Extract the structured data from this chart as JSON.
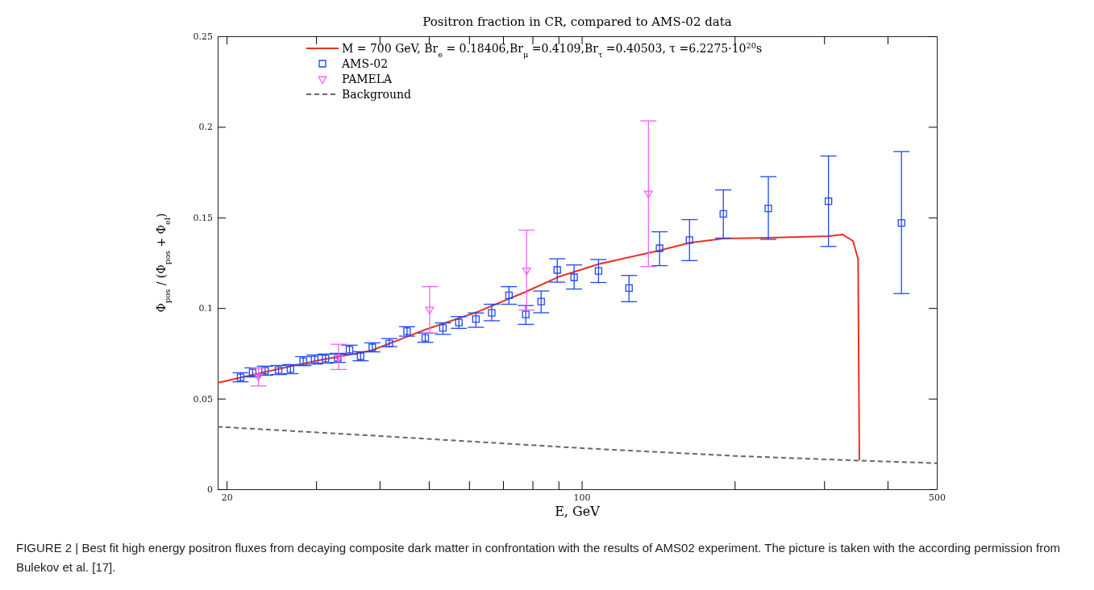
{
  "chart_data": {
    "type": "scatter",
    "title": "Positron fraction in CR, compared to AMS-02 data",
    "xlabel": "E, GeV",
    "ylabel": "Φ$_{pos}$ / (Φ$_{pos}$ + Φ$_{el}$)",
    "log": "x",
    "xlim": [
      19.2,
      500
    ],
    "ylim": [
      0,
      0.25
    ],
    "xticks": [
      20,
      {
        "value": 30,
        "label": null
      },
      {
        "value": 40,
        "label": null
      },
      {
        "value": 50,
        "label": null
      },
      {
        "value": 60,
        "label": null
      },
      {
        "value": 70,
        "label": null
      },
      {
        "value": 80,
        "label": null
      },
      {
        "value": 90,
        "label": null
      },
      100,
      {
        "value": 200,
        "label": null
      },
      {
        "value": 300,
        "label": null
      },
      {
        "value": 400,
        "label": null
      },
      500
    ],
    "yticks": [
      0,
      0.05,
      0.1,
      0.15,
      0.2,
      0.25
    ],
    "grid": false,
    "legend": "top",
    "annotations": [
      "FIGURE 2 | Best fit high energy positron fluxes from decaying composite dark matter in confrontation with the results of AMS02 experiment. The picture is taken with the according permission from Bulekov et al. [17]."
    ],
    "series": [
      {
        "name": "M = 700 GeV, Br$_{e}$ = 0.18406,Br$_{μ}$ =0.4109,Br$_{τ}$ =0.40503, τ =6.2275·10$^{20}$s",
        "type": "line",
        "color": "#e8321e",
        "marker": "none",
        "line_style": "solid",
        "x": [
          19.2,
          23.7,
          30.1,
          38.5,
          49.2,
          62.5,
          77.6,
          90.2,
          108.2,
          142.3,
          163,
          190,
          233,
          306,
          326,
          342,
          350,
          351,
          352
        ],
        "values": [
          0.0587,
          0.0646,
          0.071,
          0.0765,
          0.0881,
          0.098,
          0.109,
          0.1173,
          0.1243,
          0.1318,
          0.136,
          0.1383,
          0.1388,
          0.1397,
          0.1406,
          0.137,
          0.127,
          0.068,
          0.016
        ]
      },
      {
        "name": "AMS-02",
        "color": "#1f48f0",
        "marker": "square",
        "x": [
          21.3,
          22.5,
          23.8,
          25.3,
          26.7,
          28.3,
          29.8,
          31.3,
          33.1,
          34.9,
          36.7,
          38.7,
          41.8,
          45.3,
          49.2,
          53.3,
          57.3,
          61.9,
          66.5,
          71.9,
          77.6,
          83.2,
          89.5,
          96.6,
          107.9,
          123.9,
          142.3,
          163,
          190,
          233,
          306,
          426
        ],
        "values": [
          0.0618,
          0.0645,
          0.0654,
          0.0658,
          0.0663,
          0.0707,
          0.0716,
          0.0721,
          0.0725,
          0.077,
          0.0734,
          0.0783,
          0.0805,
          0.0872,
          0.0836,
          0.089,
          0.092,
          0.0939,
          0.0974,
          0.107,
          0.0965,
          0.1036,
          0.121,
          0.117,
          0.1205,
          0.111,
          0.133,
          0.1375,
          0.152,
          0.155,
          0.159,
          0.147
        ],
        "errors": [
          0.0025,
          0.0025,
          0.0025,
          0.0025,
          0.0025,
          0.0025,
          0.0025,
          0.0025,
          0.0025,
          0.0025,
          0.0025,
          0.0025,
          [
            0.0787,
            0.0832
          ],
          [
            0.0845,
            0.0897
          ],
          [
            0.0811,
            0.0862
          ],
          [
            0.0855,
            0.0918
          ],
          [
            0.0888,
            0.0953
          ],
          [
            0.0894,
            0.0973
          ],
          [
            0.093,
            0.1021
          ],
          [
            0.1021,
            0.1118
          ],
          [
            0.091,
            0.1014
          ],
          [
            0.0974,
            0.1094
          ],
          [
            0.1143,
            0.1272
          ],
          [
            0.1105,
            0.1238
          ],
          [
            0.1141,
            0.1268
          ],
          [
            0.1035,
            0.118
          ],
          [
            0.1234,
            0.1421
          ],
          [
            0.1262,
            0.1488
          ],
          [
            0.1386,
            0.1652
          ],
          [
            0.1379,
            0.1725
          ],
          [
            0.134,
            0.1839
          ],
          [
            0.108,
            0.1864
          ]
        ]
      },
      {
        "name": "PAMELA",
        "color": "#ee66ee",
        "marker": "triangle",
        "x": [
          23.1,
          33.2,
          50.2,
          77.9,
          135.3
        ],
        "values": [
          0.0623,
          0.0727,
          0.0992,
          0.1208,
          0.1633
        ],
        "errors": [
          [
            0.057,
            0.0669
          ],
          [
            0.0661,
            0.08
          ],
          [
            0.0863,
            0.1118
          ],
          [
            0.0989,
            0.143
          ],
          [
            0.1229,
            0.2033
          ]
        ]
      },
      {
        "name": "Background",
        "type": "line",
        "color": "#666666",
        "marker": "none",
        "line_style": "dashed",
        "x": [
          19.2,
          40,
          100,
          200,
          352,
          500
        ],
        "values": [
          0.0345,
          0.0294,
          0.0227,
          0.0184,
          0.0158,
          0.0144
        ]
      }
    ]
  }
}
